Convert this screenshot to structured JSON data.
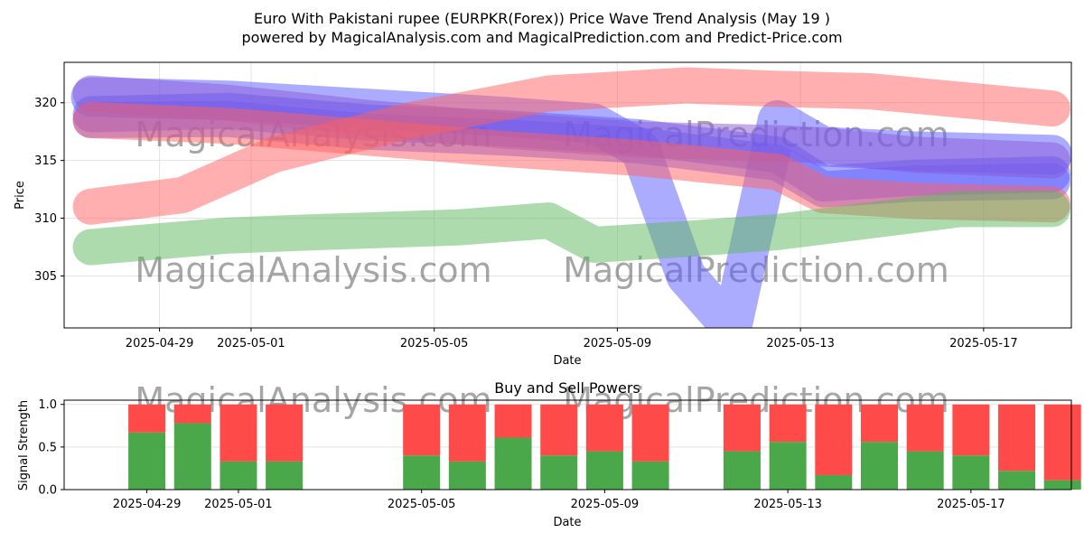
{
  "title_line1": "Euro With Pakistani rupee (EURPKR(Forex)) Price Wave Trend Analysis (May 19 )",
  "title_line2": "powered by MagicalAnalysis.com and MagicalPrediction.com and Predict-Price.com",
  "watermarks": [
    "MagicalAnalysis.com",
    "MagicalPrediction.com"
  ],
  "chart_data": [
    {
      "type": "line",
      "title": "",
      "xlabel": "Date",
      "ylabel": "Price",
      "ylim": [
        300.5,
        323.5
      ],
      "xlim": [
        "2025-04-26T22:00",
        "2025-05-18T22:00"
      ],
      "grid": true,
      "x_ticks": [
        "2025-04-29",
        "2025-05-01",
        "2025-05-05",
        "2025-05-09",
        "2025-05-13",
        "2025-05-17"
      ],
      "y_ticks": [
        305,
        310,
        315,
        320
      ],
      "colors": {
        "red": "#ff6060",
        "green": "#5cb85c",
        "blue": "#5a5aff",
        "purple": "#8a5ad8"
      },
      "series": [
        {
          "color": "blue",
          "x": [
            "2025-04-27",
            "2025-04-30",
            "2025-05-03",
            "2025-05-06",
            "2025-05-08",
            "2025-05-09",
            "2025-05-10",
            "2025-05-11",
            "2025-05-12",
            "2025-05-13",
            "2025-05-15",
            "2025-05-17",
            "2025-05-18"
          ],
          "values": [
            320.5,
            320.2,
            319.5,
            318.8,
            318.2,
            316.0,
            305.0,
            300.5,
            318.5,
            316.2,
            315.8,
            315.6,
            315.5
          ]
        },
        {
          "color": "blue",
          "x": [
            "2025-04-27",
            "2025-04-30",
            "2025-05-03",
            "2025-05-06",
            "2025-05-09",
            "2025-05-12",
            "2025-05-13",
            "2025-05-15",
            "2025-05-18"
          ],
          "values": [
            319.0,
            319.3,
            318.3,
            317.8,
            317.0,
            315.5,
            313.0,
            313.5,
            313.8
          ]
        },
        {
          "color": "blue",
          "x": [
            "2025-04-27",
            "2025-04-30",
            "2025-05-03",
            "2025-05-06",
            "2025-05-09",
            "2025-05-12",
            "2025-05-13",
            "2025-05-15",
            "2025-05-18"
          ],
          "values": [
            318.5,
            318.6,
            317.5,
            317.0,
            316.3,
            314.8,
            312.5,
            313.0,
            313.2
          ]
        },
        {
          "color": "purple",
          "x": [
            "2025-04-27",
            "2025-04-30",
            "2025-05-03",
            "2025-05-06",
            "2025-05-09",
            "2025-05-12",
            "2025-05-13",
            "2025-05-15",
            "2025-05-18"
          ],
          "values": [
            320.8,
            320.0,
            318.7,
            317.6,
            316.8,
            316.5,
            316.3,
            315.5,
            315.0
          ]
        },
        {
          "color": "red",
          "x": [
            "2025-04-27",
            "2025-04-29",
            "2025-05-01",
            "2025-05-04",
            "2025-05-07",
            "2025-05-10",
            "2025-05-12",
            "2025-05-14",
            "2025-05-18"
          ],
          "values": [
            311.0,
            312.0,
            315.5,
            318.5,
            320.8,
            321.5,
            321.2,
            321.0,
            319.5
          ]
        },
        {
          "color": "red",
          "x": [
            "2025-04-27",
            "2025-04-30",
            "2025-05-03",
            "2025-05-06",
            "2025-05-09",
            "2025-05-12",
            "2025-05-13",
            "2025-05-15",
            "2025-05-18"
          ],
          "values": [
            318.5,
            318.0,
            317.0,
            316.0,
            315.2,
            314.0,
            312.0,
            311.5,
            311.2
          ]
        },
        {
          "color": "green",
          "x": [
            "2025-04-27",
            "2025-04-30",
            "2025-05-02",
            "2025-05-05",
            "2025-05-07",
            "2025-05-08",
            "2025-05-10",
            "2025-05-12",
            "2025-05-14",
            "2025-05-16",
            "2025-05-18"
          ],
          "values": [
            307.5,
            308.5,
            308.8,
            309.2,
            309.8,
            307.7,
            308.2,
            308.8,
            309.8,
            310.8,
            310.8
          ]
        }
      ]
    },
    {
      "type": "bar",
      "title": "Buy and Sell Powers",
      "xlabel": "Date",
      "ylabel": "Signal Strength",
      "ylim": [
        0,
        1.05
      ],
      "y_ticks": [
        "0.0",
        "0.5",
        "1.0"
      ],
      "x_ticks": [
        "2025-04-29",
        "2025-05-01",
        "2025-05-05",
        "2025-05-09",
        "2025-05-13",
        "2025-05-17"
      ],
      "colors": {
        "buy": "#4aa84a",
        "sell": "#ff4a4a"
      },
      "dates": [
        "2025-04-29",
        "2025-04-30",
        "2025-05-01",
        "2025-05-02",
        "2025-05-05",
        "2025-05-06",
        "2025-05-07",
        "2025-05-08",
        "2025-05-09",
        "2025-05-10",
        "2025-05-12",
        "2025-05-13",
        "2025-05-14",
        "2025-05-15",
        "2025-05-16",
        "2025-05-17",
        "2025-05-18",
        "2025-05-19"
      ],
      "buy": [
        0.67,
        0.78,
        0.33,
        0.33,
        0.4,
        0.33,
        0.61,
        0.4,
        0.45,
        0.33,
        0.45,
        0.56,
        0.17,
        0.56,
        0.45,
        0.4,
        0.22,
        0.11
      ],
      "sell_total": 1.0
    }
  ]
}
